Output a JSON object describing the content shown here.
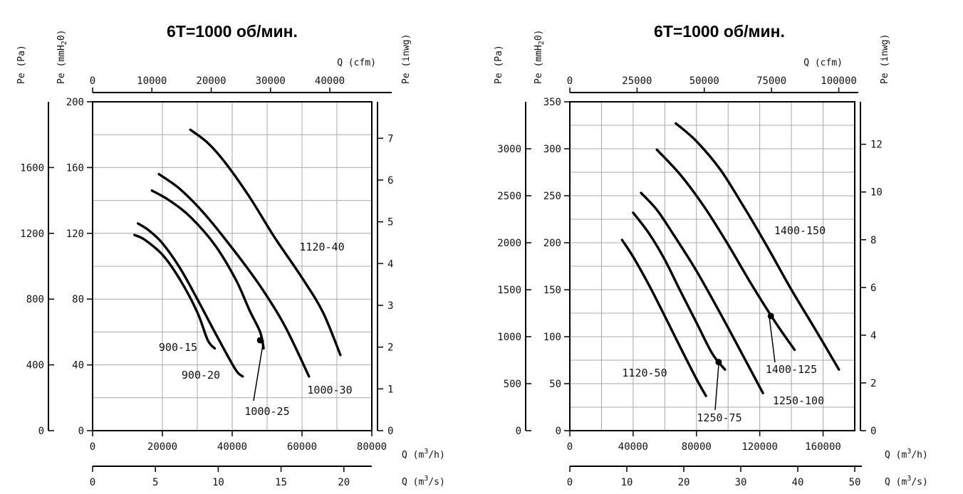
{
  "chart_data": [
    {
      "type": "line",
      "title": "6T=1000 об/мин.",
      "axes": {
        "pe_pa": {
          "label": "Pe (Pa)",
          "ticks": [
            0,
            400,
            800,
            1200,
            1600
          ]
        },
        "pe_mmh2o": {
          "label_main": "Pe (mmH",
          "label_sub": "2",
          "label_end": "0)",
          "ticks": [
            0,
            40,
            80,
            120,
            160,
            200
          ]
        },
        "pe_inwg": {
          "label": "Pe (inwg)",
          "ticks": [
            0,
            1,
            2,
            3,
            4,
            5,
            6,
            7
          ]
        },
        "q_cfm": {
          "label": "Q (cfm)",
          "ticks": [
            0,
            10000,
            20000,
            30000,
            40000
          ]
        },
        "q_m3h": {
          "label_main": "Q (m",
          "label_sup": "3",
          "label_end": "/h)",
          "ticks": [
            0,
            20000,
            40000,
            60000,
            80000
          ]
        },
        "q_m3s": {
          "label_main": "Q (m",
          "label_sup": "3",
          "label_end": "/s)",
          "ticks": [
            0,
            5,
            10,
            15,
            20
          ]
        }
      },
      "xlim": [
        0,
        80000
      ],
      "ylim": [
        0,
        200
      ],
      "grid": true,
      "series": [
        {
          "name": "900-15",
          "points": [
            [
              12000,
              119
            ],
            [
              15000,
              116
            ],
            [
              20000,
              107
            ],
            [
              25000,
              92
            ],
            [
              30000,
              72
            ],
            [
              33000,
              55
            ],
            [
              35000,
              50
            ]
          ]
        },
        {
          "name": "900-20",
          "points": [
            [
              13000,
              126
            ],
            [
              16000,
              122
            ],
            [
              20000,
              114
            ],
            [
              25000,
              99
            ],
            [
              30000,
              80
            ],
            [
              36000,
              56
            ],
            [
              41000,
              37
            ],
            [
              43000,
              33
            ]
          ]
        },
        {
          "name": "1000-25",
          "points": [
            [
              17000,
              146
            ],
            [
              22000,
              140
            ],
            [
              28000,
              130
            ],
            [
              35000,
              113
            ],
            [
              41000,
              92
            ],
            [
              45000,
              73
            ],
            [
              48000,
              60
            ],
            [
              49000,
              50
            ]
          ]
        },
        {
          "name": "1000-30",
          "points": [
            [
              19000,
              156
            ],
            [
              25000,
              147
            ],
            [
              32000,
              132
            ],
            [
              40000,
              111
            ],
            [
              48000,
              88
            ],
            [
              55000,
              64
            ],
            [
              62000,
              33
            ]
          ]
        },
        {
          "name": "1120-40",
          "points": [
            [
              28000,
              183
            ],
            [
              33000,
              175
            ],
            [
              38000,
              163
            ],
            [
              45000,
              142
            ],
            [
              52000,
              118
            ],
            [
              60000,
              93
            ],
            [
              66000,
              72
            ],
            [
              71000,
              46
            ]
          ]
        }
      ],
      "labels": [
        "900-15",
        "900-20",
        "1000-25",
        "1000-30",
        "1120-40"
      ],
      "operating_point": {
        "series": "1000-25",
        "x": 48000,
        "y": 55
      }
    },
    {
      "type": "line",
      "title": "6T=1000 об/мин.",
      "axes": {
        "pe_pa": {
          "label": "Pe (Pa)",
          "ticks": [
            0,
            500,
            1000,
            1500,
            2000,
            2500,
            3000
          ]
        },
        "pe_mmh2o": {
          "label_main": "Pe (mmH",
          "label_sub": "2",
          "label_end": "0)",
          "ticks": [
            0,
            50,
            100,
            150,
            200,
            250,
            300,
            350
          ]
        },
        "pe_inwg": {
          "label": "Pe (inwg)",
          "ticks": [
            0,
            2,
            4,
            6,
            8,
            10,
            12
          ]
        },
        "q_cfm": {
          "label": "Q (cfm)",
          "ticks": [
            0,
            25000,
            50000,
            75000,
            100000
          ]
        },
        "q_m3h": {
          "label_main": "Q (m",
          "label_sup": "3",
          "label_end": "/h)",
          "ticks": [
            0,
            40000,
            80000,
            120000,
            160000
          ]
        },
        "q_m3s": {
          "label_main": "Q (m",
          "label_sup": "3",
          "label_end": "/s)",
          "ticks": [
            0,
            10,
            20,
            30,
            40,
            50
          ]
        }
      },
      "xlim": [
        0,
        180000
      ],
      "ylim": [
        0,
        350
      ],
      "grid": true,
      "series": [
        {
          "name": "1120-50",
          "points": [
            [
              33000,
              203
            ],
            [
              40000,
              185
            ],
            [
              50000,
              155
            ],
            [
              60000,
              122
            ],
            [
              70000,
              88
            ],
            [
              80000,
              55
            ],
            [
              86000,
              37
            ]
          ]
        },
        {
          "name": "1250-75",
          "points": [
            [
              40000,
              232
            ],
            [
              50000,
              210
            ],
            [
              60000,
              182
            ],
            [
              70000,
              148
            ],
            [
              80000,
              115
            ],
            [
              90000,
              82
            ],
            [
              98000,
              65
            ]
          ]
        },
        {
          "name": "1250-100",
          "points": [
            [
              45000,
              253
            ],
            [
              55000,
              235
            ],
            [
              65000,
              210
            ],
            [
              80000,
              170
            ],
            [
              95000,
              125
            ],
            [
              110000,
              78
            ],
            [
              122000,
              40
            ]
          ]
        },
        {
          "name": "1400-125",
          "points": [
            [
              55000,
              299
            ],
            [
              70000,
              272
            ],
            [
              85000,
              238
            ],
            [
              100000,
              198
            ],
            [
              115000,
              155
            ],
            [
              130000,
              115
            ],
            [
              142000,
              86
            ]
          ]
        },
        {
          "name": "1400-150",
          "points": [
            [
              67000,
              327
            ],
            [
              80000,
              308
            ],
            [
              95000,
              278
            ],
            [
              110000,
              238
            ],
            [
              125000,
              195
            ],
            [
              140000,
              150
            ],
            [
              155000,
              108
            ],
            [
              170000,
              65
            ]
          ]
        }
      ],
      "labels": [
        "1120-50",
        "1250-75",
        "1250-100",
        "1400-125",
        "1400-150"
      ],
      "operating_points": [
        {
          "series": "1250-75",
          "x": 94000,
          "y": 73
        },
        {
          "series": "1400-125",
          "x": 127000,
          "y": 122
        }
      ]
    }
  ]
}
